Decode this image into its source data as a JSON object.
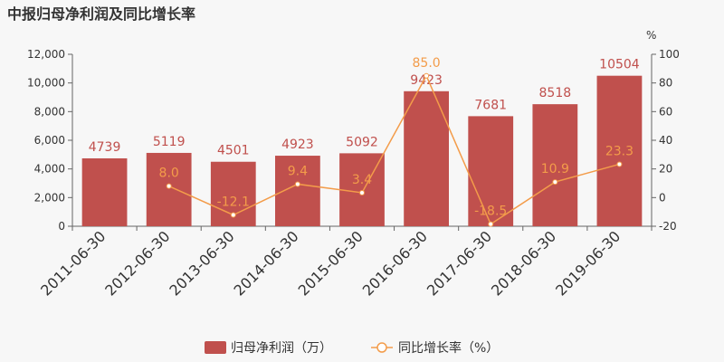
{
  "chart_data": {
    "type": "bar",
    "title": "中报归母净利润及同比增长率",
    "categories": [
      "2011-06-30",
      "2012-06-30",
      "2013-06-30",
      "2014-06-30",
      "2015-06-30",
      "2016-06-30",
      "2017-06-30",
      "2018-06-30",
      "2019-06-30"
    ],
    "series": [
      {
        "name": "归母净利润（万）",
        "type": "bar",
        "axis": "left",
        "color": "#c0504d",
        "values": [
          4739,
          5119,
          4501,
          4923,
          5092,
          9423,
          7681,
          8518,
          10504
        ]
      },
      {
        "name": "同比增长率（%）",
        "type": "line",
        "axis": "right",
        "color": "#f39c4a",
        "values": [
          null,
          8.0,
          -12.1,
          9.4,
          3.4,
          85.0,
          -18.5,
          10.9,
          23.3
        ],
        "labels": [
          "",
          "8.0",
          "-12.1",
          "9.4",
          "3.4",
          "85.0",
          "-18.5",
          "10.9",
          "23.3"
        ]
      }
    ],
    "y_left": {
      "min": 0,
      "max": 12000,
      "ticks": [
        "0",
        "2,000",
        "4,000",
        "6,000",
        "8,000",
        "10,000",
        "12,000"
      ]
    },
    "y_right": {
      "min": -20,
      "max": 100,
      "unit": "%",
      "ticks": [
        "-20",
        "0",
        "20",
        "40",
        "60",
        "80",
        "100"
      ]
    },
    "legend": {
      "position": "bottom"
    },
    "grid": false
  }
}
